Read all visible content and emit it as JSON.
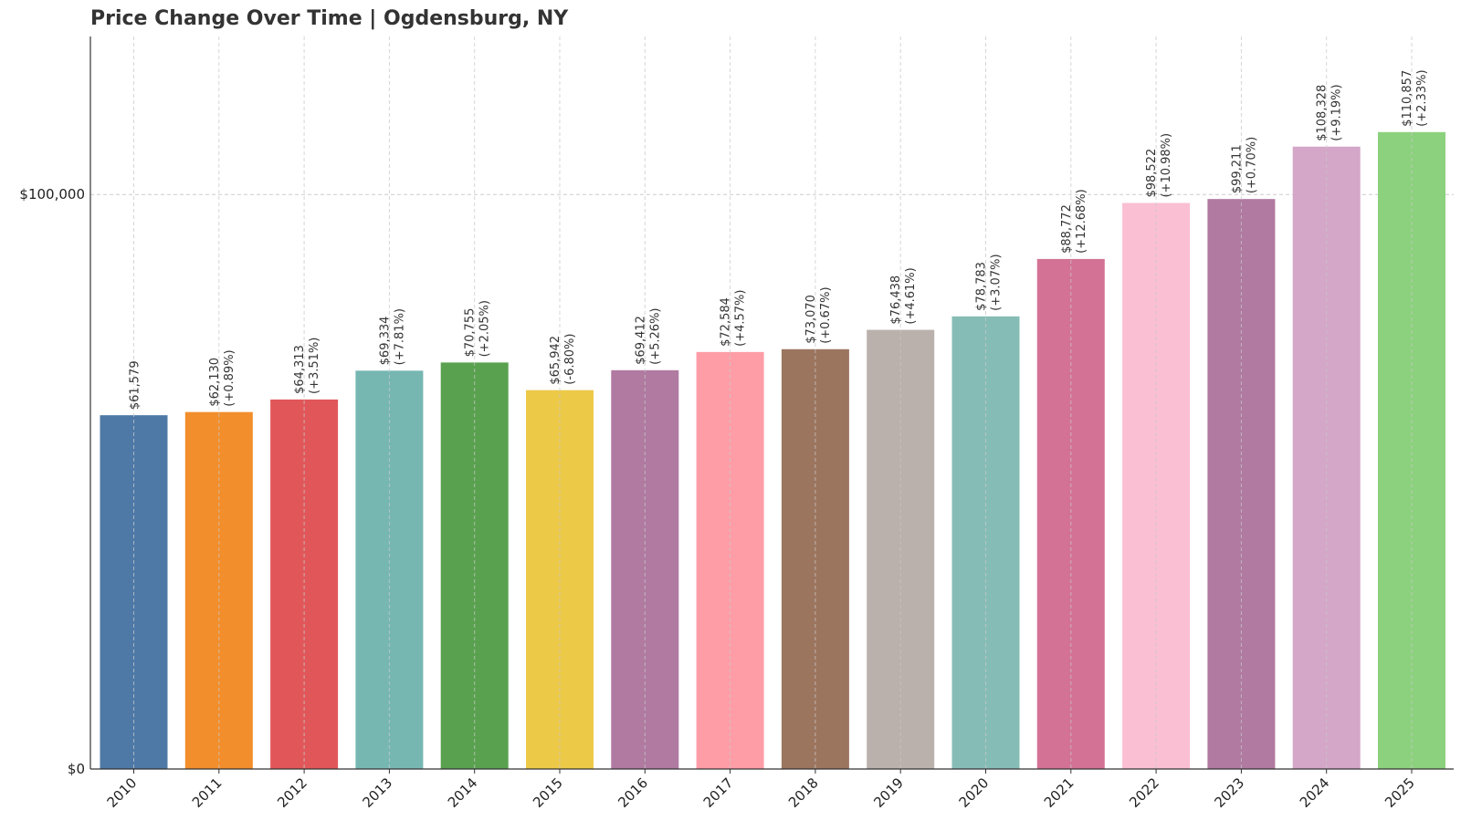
{
  "chart_data": {
    "type": "bar",
    "title": "Price Change Over Time | Ogdensburg, NY",
    "xlabel": "",
    "ylabel": "",
    "categories": [
      "2010",
      "2011",
      "2012",
      "2013",
      "2014",
      "2015",
      "2016",
      "2017",
      "2018",
      "2019",
      "2020",
      "2021",
      "2022",
      "2023",
      "2024",
      "2025"
    ],
    "values": [
      61579,
      62130,
      64313,
      69334,
      70755,
      65942,
      69412,
      72584,
      73070,
      76438,
      78783,
      88772,
      98522,
      99211,
      108328,
      110857
    ],
    "value_labels": [
      "$61,579",
      "$62,130",
      "$64,313",
      "$69,334",
      "$70,755",
      "$65,942",
      "$69,412",
      "$72,584",
      "$73,070",
      "$76,438",
      "$78,783",
      "$88,772",
      "$98,522",
      "$99,211",
      "$108,328",
      "$110,857"
    ],
    "change_labels": [
      "",
      "(+0.89%)",
      "(+3.51%)",
      "(+7.81%)",
      "(+2.05%)",
      "(-6.80%)",
      "(+5.26%)",
      "(+4.57%)",
      "(+0.67%)",
      "(+4.61%)",
      "(+3.07%)",
      "(+12.68%)",
      "(+10.98%)",
      "(+0.70%)",
      "(+9.19%)",
      "(+2.33%)"
    ],
    "colors": [
      "#4e79a7",
      "#f28e2b",
      "#e15759",
      "#76b7b2",
      "#59a14f",
      "#edc948",
      "#b07aa1",
      "#ff9da7",
      "#9c755f",
      "#bab0ac",
      "#86bcb6",
      "#d37295",
      "#fabfd2",
      "#b07aa1",
      "#d4a6c8",
      "#8cd17d"
    ],
    "ylim": [
      0,
      127500
    ],
    "yticks": [
      0,
      100000
    ],
    "ytick_labels": [
      "$0",
      "$100,000"
    ],
    "grid": true,
    "legend": "none"
  }
}
